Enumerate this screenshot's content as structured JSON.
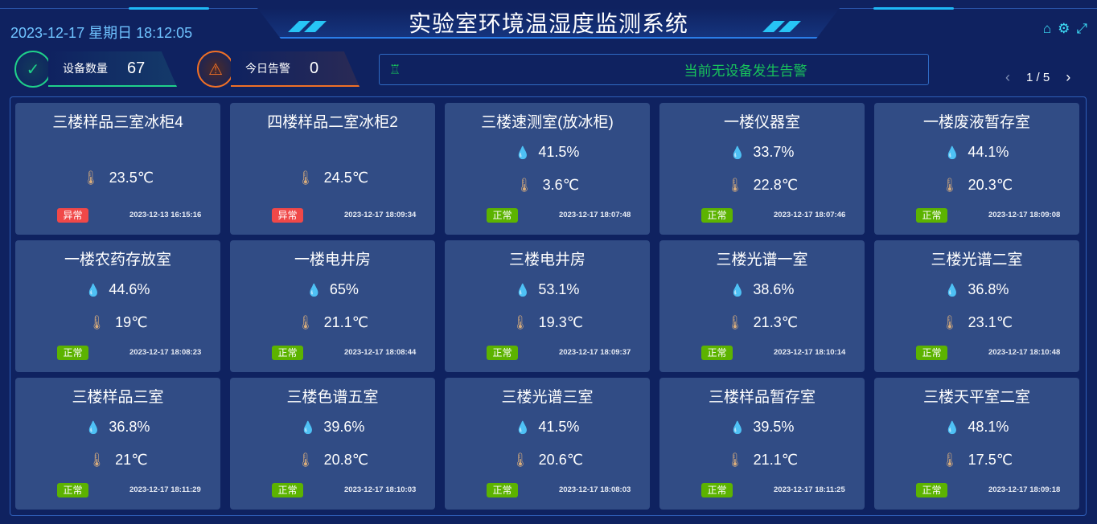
{
  "header": {
    "title": "实验室环境温湿度监测系统",
    "datetime": "2023-12-17 星期日 18:12:05",
    "icons": [
      "home-icon",
      "gear-icon",
      "fullscreen-icon"
    ]
  },
  "stats": {
    "devices": {
      "label": "设备数量",
      "value": "67",
      "color": "#1fd18a"
    },
    "alarms": {
      "label": "今日告警",
      "value": "0",
      "color": "#f07026"
    }
  },
  "alert": {
    "text": "当前无设备发生告警",
    "color": "#18c35b"
  },
  "pager": {
    "text": "1 / 5",
    "prev": "‹",
    "next": "›"
  },
  "colors": {
    "normal": "#5cb300",
    "abnormal": "#f04848",
    "card": "#314c85"
  },
  "cards": [
    {
      "name": "三楼样品三室冰柜4",
      "humidity": null,
      "temp": "23.5℃",
      "status": "异常",
      "abnormal": true,
      "time": "2023-12-13 16:15:16"
    },
    {
      "name": "四楼样品二室冰柜2",
      "humidity": null,
      "temp": "24.5℃",
      "status": "异常",
      "abnormal": true,
      "time": "2023-12-17 18:09:34"
    },
    {
      "name": "三楼速测室(放冰柜)",
      "humidity": "41.5%",
      "temp": "3.6℃",
      "status": "正常",
      "time": "2023-12-17 18:07:48"
    },
    {
      "name": "一楼仪器室",
      "humidity": "33.7%",
      "temp": "22.8℃",
      "status": "正常",
      "time": "2023-12-17 18:07:46"
    },
    {
      "name": "一楼废液暂存室",
      "humidity": "44.1%",
      "temp": "20.3℃",
      "status": "正常",
      "time": "2023-12-17 18:09:08"
    },
    {
      "name": "一楼农药存放室",
      "humidity": "44.6%",
      "temp": "19℃",
      "status": "正常",
      "time": "2023-12-17 18:08:23"
    },
    {
      "name": "一楼电井房",
      "humidity": "65%",
      "temp": "21.1℃",
      "status": "正常",
      "time": "2023-12-17 18:08:44"
    },
    {
      "name": "三楼电井房",
      "humidity": "53.1%",
      "temp": "19.3℃",
      "status": "正常",
      "time": "2023-12-17 18:09:37"
    },
    {
      "name": "三楼光谱一室",
      "humidity": "38.6%",
      "temp": "21.3℃",
      "status": "正常",
      "time": "2023-12-17 18:10:14"
    },
    {
      "name": "三楼光谱二室",
      "humidity": "36.8%",
      "temp": "23.1℃",
      "status": "正常",
      "time": "2023-12-17 18:10:48"
    },
    {
      "name": "三楼样品三室",
      "humidity": "36.8%",
      "temp": "21℃",
      "status": "正常",
      "time": "2023-12-17 18:11:29"
    },
    {
      "name": "三楼色谱五室",
      "humidity": "39.6%",
      "temp": "20.8℃",
      "status": "正常",
      "time": "2023-12-17 18:10:03"
    },
    {
      "name": "三楼光谱三室",
      "humidity": "41.5%",
      "temp": "20.6℃",
      "status": "正常",
      "time": "2023-12-17 18:08:03"
    },
    {
      "name": "三楼样品暂存室",
      "humidity": "39.5%",
      "temp": "21.1℃",
      "status": "正常",
      "time": "2023-12-17 18:11:25"
    },
    {
      "name": "三楼天平室二室",
      "humidity": "48.1%",
      "temp": "17.5℃",
      "status": "正常",
      "time": "2023-12-17 18:09:18"
    }
  ]
}
